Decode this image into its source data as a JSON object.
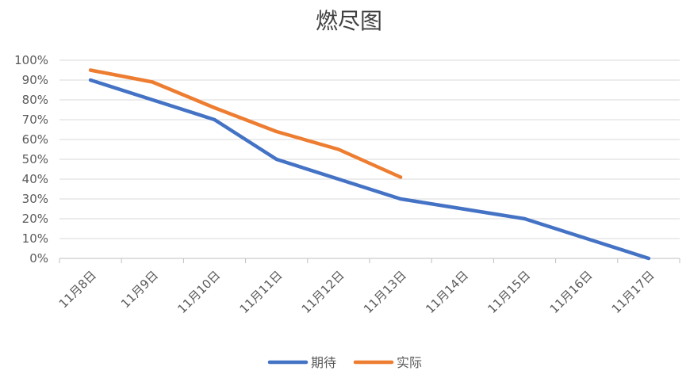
{
  "chart_data": {
    "type": "line",
    "title": "燃尽图",
    "xlabel": "",
    "ylabel": "",
    "categories": [
      "11月8日",
      "11月9日",
      "11月10日",
      "11月11日",
      "11月12日",
      "11月13日",
      "11月14日",
      "11月15日",
      "11月16日",
      "11月17日"
    ],
    "y_ticks": [
      "0%",
      "10%",
      "20%",
      "30%",
      "40%",
      "50%",
      "60%",
      "70%",
      "80%",
      "90%",
      "100%"
    ],
    "ylim": [
      0,
      100
    ],
    "grid": true,
    "legend_position": "bottom",
    "series": [
      {
        "name": "期待",
        "color": "#4472C4",
        "values": [
          90,
          80,
          70,
          50,
          40,
          30,
          25,
          20,
          10,
          0
        ]
      },
      {
        "name": "实际",
        "color": "#ED7D31",
        "values": [
          95,
          89,
          76,
          64,
          55,
          41,
          null,
          null,
          null,
          null
        ]
      }
    ]
  }
}
